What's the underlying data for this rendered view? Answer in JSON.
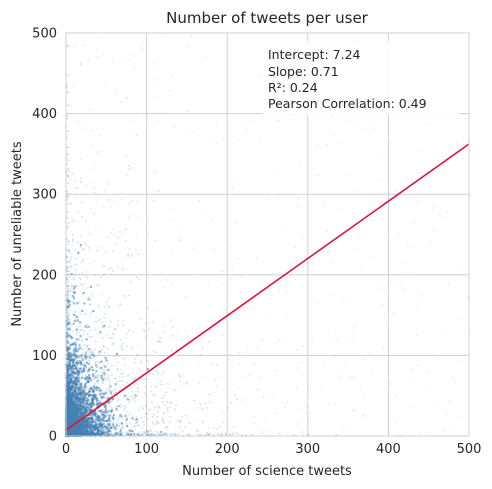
{
  "chart_data": {
    "type": "scatter",
    "title": "Number of tweets per user",
    "xlabel": "Number of science tweets",
    "ylabel": "Number of unreliable tweets",
    "xlim": [
      0,
      500
    ],
    "ylim": [
      0,
      500
    ],
    "xticks": [
      "0",
      "100",
      "200",
      "300",
      "400",
      "500"
    ],
    "yticks": [
      "0",
      "100",
      "200",
      "300",
      "400",
      "500"
    ],
    "grid": true,
    "point_color": "#4682b4",
    "regression": {
      "color": "#dc143c",
      "intercept": 7.24,
      "slope": 0.71,
      "x": [
        0,
        500
      ],
      "y": [
        7.24,
        362.24
      ]
    },
    "stats": [
      "Intercept: 7.24",
      "Slope: 0.71",
      "R²: 0.24",
      "Pearson Correlation: 0.49"
    ],
    "stats_placement": "top-right"
  }
}
